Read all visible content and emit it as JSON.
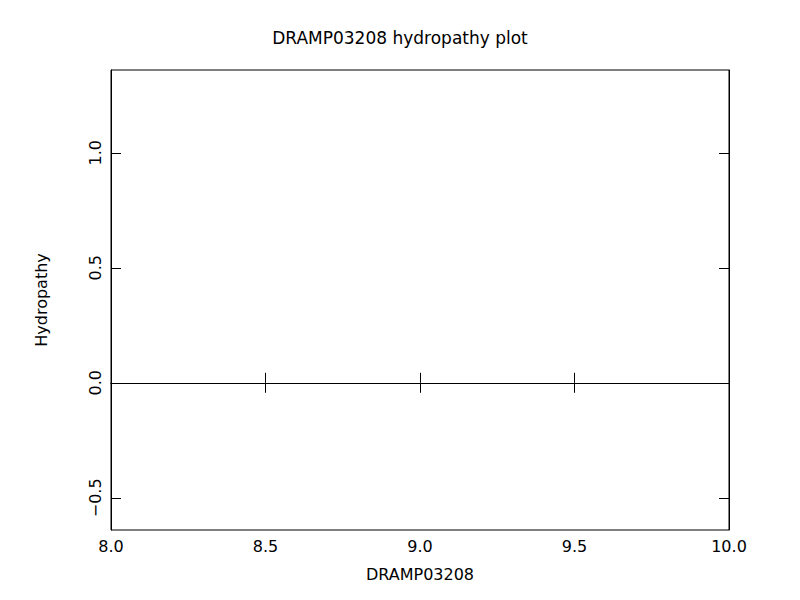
{
  "chart_data": {
    "type": "line",
    "title": "DRAMP03208 hydropathy plot",
    "x_label": "DRAMP03208",
    "y_label": "Hydropathy",
    "x": [],
    "values": [],
    "xlim": [
      8,
      10
    ],
    "xticks": [
      {
        "value": 8,
        "label": "8.0"
      },
      8.5,
      {
        "value": 9,
        "label": "9.0"
      },
      9.5,
      {
        "value": 10,
        "label": "10.0"
      }
    ],
    "ylim": [
      -0.64,
      1.36
    ],
    "yticks": [
      {
        "value": -0.5,
        "label": "−0.5"
      },
      {
        "value": 0,
        "label": "0.0"
      },
      0.5,
      {
        "value": 1,
        "label": "1.0"
      }
    ],
    "color": "#000000",
    "grid": false
  }
}
